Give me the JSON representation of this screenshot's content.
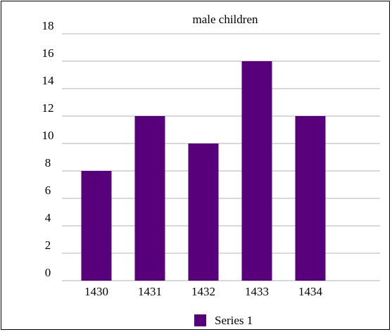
{
  "chart_data": {
    "type": "bar",
    "title": "male children",
    "categories": [
      "1430",
      "1431",
      "1432",
      "1433",
      "1434"
    ],
    "series": [
      {
        "name": "Series 1",
        "values": [
          8,
          12,
          10,
          16,
          12
        ]
      }
    ],
    "ylim": [
      0,
      18
    ],
    "yticks": [
      "0",
      "2",
      "4",
      "6",
      "8",
      "10",
      "12",
      "14",
      "16",
      "18"
    ],
    "grid": true,
    "legend": "bottom",
    "colors": {
      "bar": "#58007c",
      "grid": "#b3b3b3"
    }
  }
}
